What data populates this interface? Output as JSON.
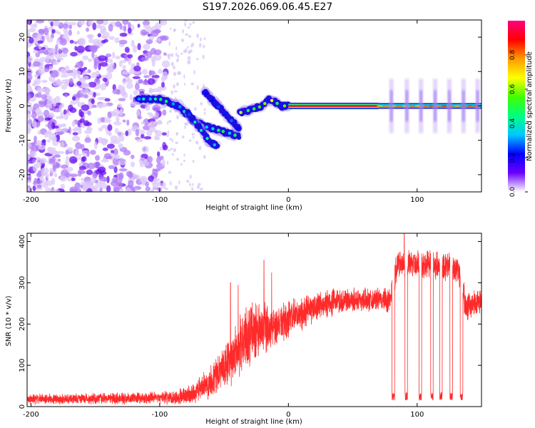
{
  "figure": {
    "title": "S197.2026.069.06.45.E27"
  },
  "chart_data": [
    {
      "type": "heatmap",
      "xlabel": "Height of straight line (km)",
      "ylabel": "Frequency (Hz)",
      "xlim": [
        -203,
        150
      ],
      "ylim": [
        -25,
        25
      ],
      "xticks": [
        -200,
        -100,
        0,
        100
      ],
      "yticks": [
        -20,
        -10,
        0,
        10,
        20
      ],
      "colorbar": {
        "label": "Normalized spectral amplitude",
        "range": [
          0,
          1
        ],
        "ticks": [
          0.0,
          0.2,
          0.4,
          0.6,
          0.8
        ],
        "tick_labels": [
          "0.0",
          "0.2",
          "0.4",
          "0.6",
          "0.8"
        ],
        "colors": [
          "#ffffff",
          "#6a00ff",
          "#0000ff",
          "#00c8ff",
          "#00ff80",
          "#40ff00",
          "#ffff00",
          "#ff9900",
          "#ff0000",
          "#ff0080"
        ]
      },
      "features": [
        {
          "name": "noise",
          "x_range": [
            -203,
            -95
          ],
          "frequency_hz": [
            -25,
            25
          ],
          "amplitude": 0.15
        },
        {
          "name": "trace-left",
          "points": [
            [
              -117,
              2
            ],
            [
              -100,
              2
            ],
            [
              -85,
              0
            ],
            [
              -75,
              -4
            ],
            [
              -65,
              -6
            ],
            [
              -55,
              -7
            ],
            [
              -45,
              -8
            ],
            [
              -38,
              -9
            ]
          ],
          "amplitude": 0.3
        },
        {
          "name": "trace-lower",
          "points": [
            [
              -78,
              -2
            ],
            [
              -70,
              -6
            ],
            [
              -62,
              -10
            ],
            [
              -55,
              -12
            ]
          ],
          "amplitude": 0.25
        },
        {
          "name": "trace-upper",
          "points": [
            [
              -65,
              4
            ],
            [
              -55,
              0
            ],
            [
              -45,
              -4
            ],
            [
              -38,
              -7
            ]
          ],
          "amplitude": 0.2
        },
        {
          "name": "trace-merge",
          "points": [
            [
              -38,
              -2
            ],
            [
              -28,
              -1
            ],
            [
              -20,
              0
            ],
            [
              -15,
              2
            ],
            [
              -10,
              1
            ],
            [
              -5,
              0
            ],
            [
              0,
              0
            ]
          ],
          "amplitude": 0.5
        },
        {
          "name": "carrier",
          "x_range": [
            0,
            70
          ],
          "frequency_hz": 0,
          "amplitude": 0.95
        },
        {
          "name": "carrier-pulsed",
          "x_range": [
            70,
            150
          ],
          "frequency_hz": 0,
          "amplitude": 0.85,
          "pulse_centers_km": [
            80,
            92,
            103,
            114,
            125,
            136,
            147
          ]
        }
      ]
    },
    {
      "type": "line",
      "xlabel": "Height of straight line (km)",
      "ylabel": "SNR (10 * v/v)",
      "xlim": [
        -203,
        150
      ],
      "ylim": [
        0,
        420
      ],
      "xticks": [
        -200,
        -100,
        0,
        100
      ],
      "yticks": [
        0,
        100,
        200,
        300,
        400
      ],
      "series": [
        {
          "name": "SNR",
          "color": "#ff2a2a",
          "envelope": [
            [
              -203,
              18
            ],
            [
              -120,
              20
            ],
            [
              -90,
              22
            ],
            [
              -75,
              30
            ],
            [
              -65,
              50
            ],
            [
              -55,
              80
            ],
            [
              -45,
              110
            ],
            [
              -40,
              140
            ],
            [
              -35,
              160
            ],
            [
              -30,
              175
            ],
            [
              -20,
              185
            ],
            [
              -10,
              200
            ],
            [
              0,
              210
            ],
            [
              10,
              225
            ],
            [
              20,
              240
            ],
            [
              30,
              250
            ],
            [
              40,
              255
            ],
            [
              50,
              258
            ],
            [
              60,
              260
            ],
            [
              70,
              260
            ],
            [
              78,
              255
            ],
            [
              85,
              345
            ],
            [
              95,
              345
            ],
            [
              110,
              345
            ],
            [
              125,
              340
            ],
            [
              132,
              330
            ],
            [
              138,
              240
            ],
            [
              150,
              255
            ]
          ],
          "noise_amplitude": [
            [
              -203,
              14
            ],
            [
              -100,
              16
            ],
            [
              -70,
              30
            ],
            [
              -40,
              80
            ],
            [
              -30,
              90
            ],
            [
              -10,
              60
            ],
            [
              20,
              40
            ],
            [
              70,
              30
            ],
            [
              80,
              40
            ],
            [
              130,
              40
            ],
            [
              150,
              40
            ]
          ],
          "spikes": [
            [
              -45,
              300
            ],
            [
              -39,
              295
            ],
            [
              -19,
              355
            ],
            [
              -13,
              325
            ],
            [
              90,
              420
            ]
          ],
          "dropouts": [
            [
              80.5,
              82.5,
              25
            ],
            [
              90.5,
              92.5,
              25
            ],
            [
              101.5,
              103.5,
              25
            ],
            [
              110.5,
              112.5,
              25
            ],
            [
              117.5,
              119.5,
              25
            ],
            [
              125.5,
              127.5,
              25
            ],
            [
              133.5,
              135.5,
              25
            ]
          ]
        }
      ]
    }
  ]
}
